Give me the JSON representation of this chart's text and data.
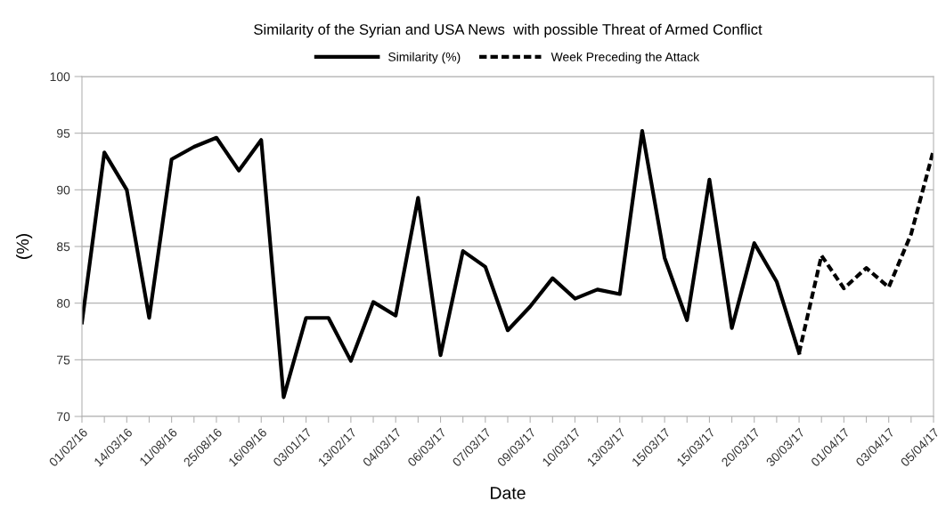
{
  "chart_data": {
    "type": "line",
    "title": "Similarity of the Syrian and USA News  with possible Threat of Armed Conflict",
    "xlabel": "Date",
    "ylabel": "(%)",
    "categories": [
      "01/02/16",
      null,
      "14/03/16",
      null,
      "11/08/16",
      null,
      "25/08/16",
      null,
      "16/09/16",
      null,
      "03/01/17",
      null,
      "13/02/17",
      null,
      "04/03/17",
      null,
      "06/03/17",
      null,
      "07/03/17",
      null,
      "09/03/17",
      null,
      "10/03/17",
      null,
      "13/03/17",
      null,
      "15/03/17",
      null,
      "15/03/17",
      null,
      "20/03/17",
      null,
      "30/03/17",
      null,
      "01/04/17",
      null,
      "03/04/17",
      null,
      "05/04/17"
    ],
    "series": [
      {
        "name": "Similarity (%)",
        "color": "#000000",
        "line_style": "solid",
        "values": [
          78.3,
          93.3,
          90.0,
          78.7,
          92.7,
          93.8,
          94.6,
          91.7,
          94.4,
          71.7,
          78.7,
          78.7,
          74.9,
          80.1,
          78.9,
          89.3,
          75.4,
          84.6,
          83.2,
          77.6,
          79.7,
          82.2,
          80.4,
          81.2,
          80.8,
          95.2,
          84.0,
          78.5,
          90.9,
          77.8,
          85.3,
          81.9,
          75.6,
          null,
          null,
          null,
          null,
          null,
          null
        ]
      },
      {
        "name": "Week Preceding the Attack",
        "color": "#000000",
        "line_style": "dashed",
        "values": [
          null,
          null,
          null,
          null,
          null,
          null,
          null,
          null,
          null,
          null,
          null,
          null,
          null,
          null,
          null,
          null,
          null,
          null,
          null,
          null,
          null,
          null,
          null,
          null,
          null,
          null,
          null,
          null,
          null,
          null,
          null,
          null,
          75.6,
          84.2,
          81.3,
          83.1,
          81.4,
          86.1,
          93.5
        ]
      }
    ],
    "ylim": [
      70,
      100
    ],
    "yticks": [
      70,
      75,
      80,
      85,
      90,
      95,
      100
    ],
    "grid": "y",
    "legend": "top",
    "marker": "none"
  }
}
